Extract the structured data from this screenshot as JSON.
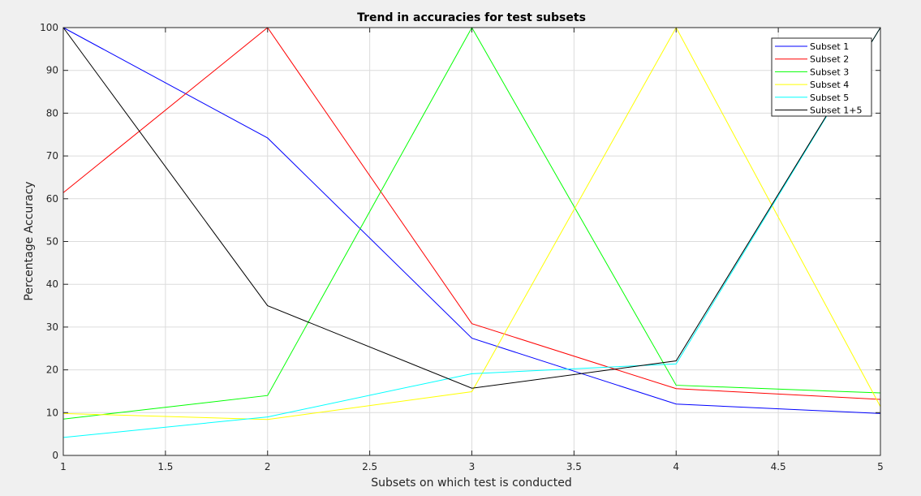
{
  "chart_data": {
    "type": "line",
    "title": "Trend in accuracies for test subsets",
    "xlabel": "Subsets on which test is conducted",
    "ylabel": "Percentage Accuracy",
    "xlim": [
      1,
      5
    ],
    "ylim": [
      0,
      100
    ],
    "x_ticks": [
      "1",
      "1.5",
      "2",
      "2.5",
      "3",
      "3.5",
      "4",
      "4.5",
      "5"
    ],
    "y_ticks": [
      "0",
      "10",
      "20",
      "30",
      "40",
      "50",
      "60",
      "70",
      "80",
      "90",
      "100"
    ],
    "grid": true,
    "legend_position": "top-right",
    "x": [
      1,
      2,
      3,
      4,
      5
    ],
    "series": [
      {
        "name": "Subset 1",
        "color": "#0000ff",
        "values": [
          100,
          74.2,
          27.4,
          12.0,
          9.8
        ]
      },
      {
        "name": "Subset 2",
        "color": "#ff0000",
        "values": [
          61.4,
          100,
          30.8,
          15.6,
          13.1
        ]
      },
      {
        "name": "Subset 3",
        "color": "#00ff00",
        "values": [
          8.5,
          14.0,
          100,
          16.4,
          14.6
        ]
      },
      {
        "name": "Subset 4",
        "color": "#ffff00",
        "values": [
          9.8,
          8.4,
          14.9,
          100,
          11.4
        ]
      },
      {
        "name": "Subset 5",
        "color": "#00ffff",
        "values": [
          4.2,
          9.0,
          19.1,
          21.4,
          100
        ]
      },
      {
        "name": "Subset 1+5",
        "color": "#000000",
        "values": [
          100,
          35.0,
          15.7,
          22.1,
          100
        ]
      }
    ]
  }
}
